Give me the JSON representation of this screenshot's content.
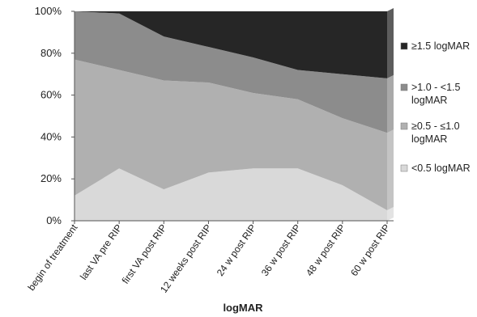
{
  "chart_data": {
    "type": "area",
    "stacked": true,
    "percent": true,
    "categories": [
      "begin of treatment",
      "last VA pre RIP",
      "first VA post RIP",
      "12 weeks post RIP",
      "24 w post RIP",
      "36 w post RIP",
      "48 w post RIP",
      "60 w post RIP"
    ],
    "series": [
      {
        "name": "<0.5 logMAR",
        "color": "#d9d9d9",
        "values": [
          12,
          25,
          15,
          23,
          25,
          25,
          17,
          5
        ]
      },
      {
        "name": "≥0.5 - ≤1.0 logMAR",
        "color": "#b0b0b0",
        "values": [
          65,
          47,
          52,
          43,
          36,
          33,
          32,
          37
        ]
      },
      {
        "name": ">1.0 - <1.5 logMAR",
        "color": "#8c8c8c",
        "values": [
          23,
          27,
          21,
          17,
          17,
          14,
          21,
          26
        ]
      },
      {
        "name": "≥1.5 logMAR",
        "color": "#262626",
        "values": [
          0,
          1,
          12,
          17,
          22,
          28,
          30,
          32
        ]
      }
    ],
    "y_ticks": [
      "0%",
      "20%",
      "40%",
      "60%",
      "80%",
      "100%"
    ],
    "ylim": [
      0,
      100
    ],
    "xlabel": "logMAR",
    "ylabel": "",
    "legend_position": "right",
    "grid": false
  }
}
